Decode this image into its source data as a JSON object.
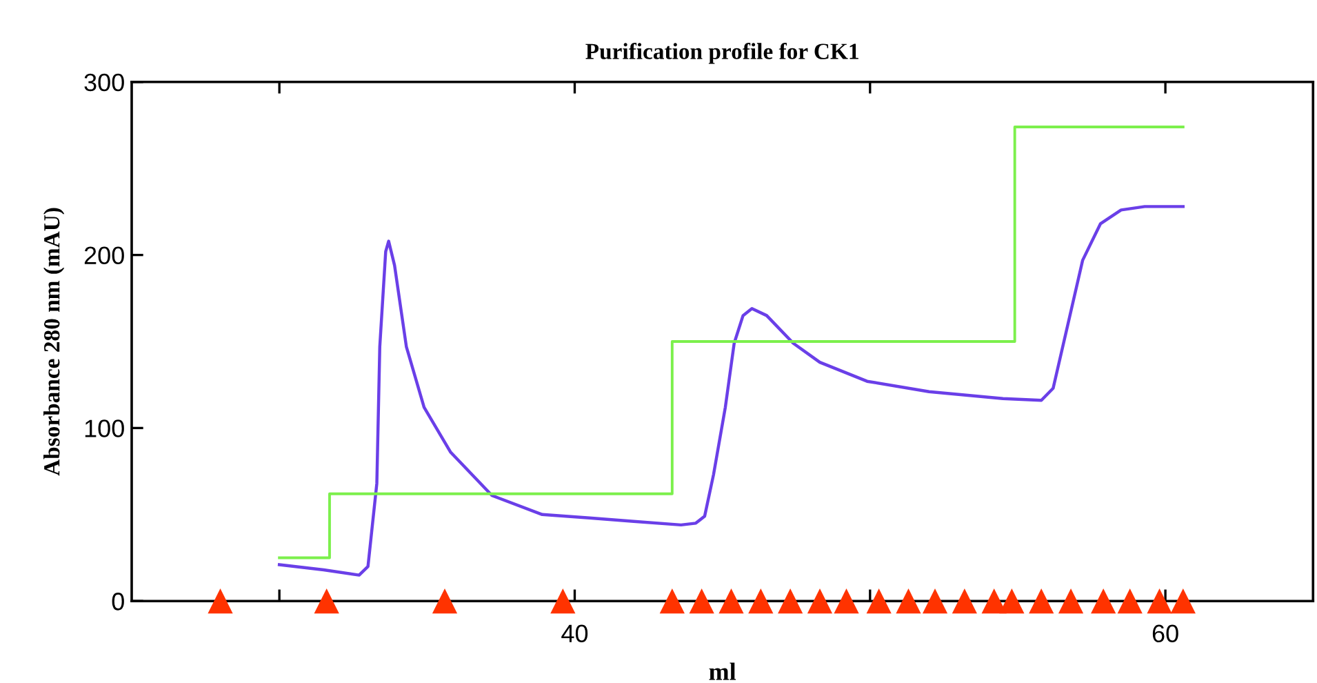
{
  "chart_data": {
    "type": "line",
    "title": "Purification profile for CK1",
    "xlabel": "ml",
    "ylabel": "Absorbance 280 nm (mAU)",
    "xlim": [
      25,
      65
    ],
    "xticks": [
      {
        "value": 30,
        "label": null
      },
      40,
      {
        "value": 50,
        "label": null
      },
      60
    ],
    "ylim": [
      0,
      300
    ],
    "yticks": [
      0,
      100,
      200,
      300
    ],
    "grid": false,
    "series": [
      {
        "color": "#6a3fe8",
        "x": [
          30.0,
          31.5,
          32.7,
          33.0,
          33.1,
          33.3,
          33.4,
          33.6,
          33.7,
          33.9,
          34.3,
          34.9,
          35.8,
          37.2,
          38.9,
          40.5,
          42.0,
          43.6,
          44.1,
          44.4,
          44.7,
          45.1,
          45.4,
          45.7,
          46.0,
          46.5,
          47.4,
          48.3,
          49.9,
          52.0,
          54.5,
          55.8,
          56.2,
          56.7,
          57.2,
          57.8,
          58.5,
          59.3,
          60.6
        ],
        "values": [
          21,
          18,
          15,
          20,
          36,
          68,
          147,
          202,
          208,
          194,
          147,
          112,
          86,
          61,
          50,
          48,
          46,
          44,
          45,
          49,
          73,
          112,
          149,
          165,
          169,
          165,
          149,
          138,
          127,
          121,
          117,
          116,
          123,
          160,
          197,
          218,
          226,
          228,
          228
        ]
      },
      {
        "type": "step",
        "color": "#7cf04c",
        "x": [
          30.0,
          31.7,
          43.3,
          54.9,
          60.6
        ],
        "values": [
          25,
          62,
          150,
          274,
          274
        ]
      },
      {
        "type": "scatter",
        "color": "#ff3300",
        "marker": "triangle",
        "x": [
          28.0,
          31.6,
          35.6,
          39.6,
          43.3,
          44.3,
          45.3,
          46.3,
          47.3,
          48.3,
          49.2,
          50.3,
          51.3,
          52.2,
          53.2,
          54.2,
          54.8,
          55.8,
          56.8,
          57.9,
          58.8,
          59.8,
          60.6
        ],
        "values": [
          0,
          0,
          0,
          0,
          0,
          0,
          0,
          0,
          0,
          0,
          0,
          0,
          0,
          0,
          0,
          0,
          0,
          0,
          0,
          0,
          0,
          0,
          0
        ]
      }
    ]
  }
}
